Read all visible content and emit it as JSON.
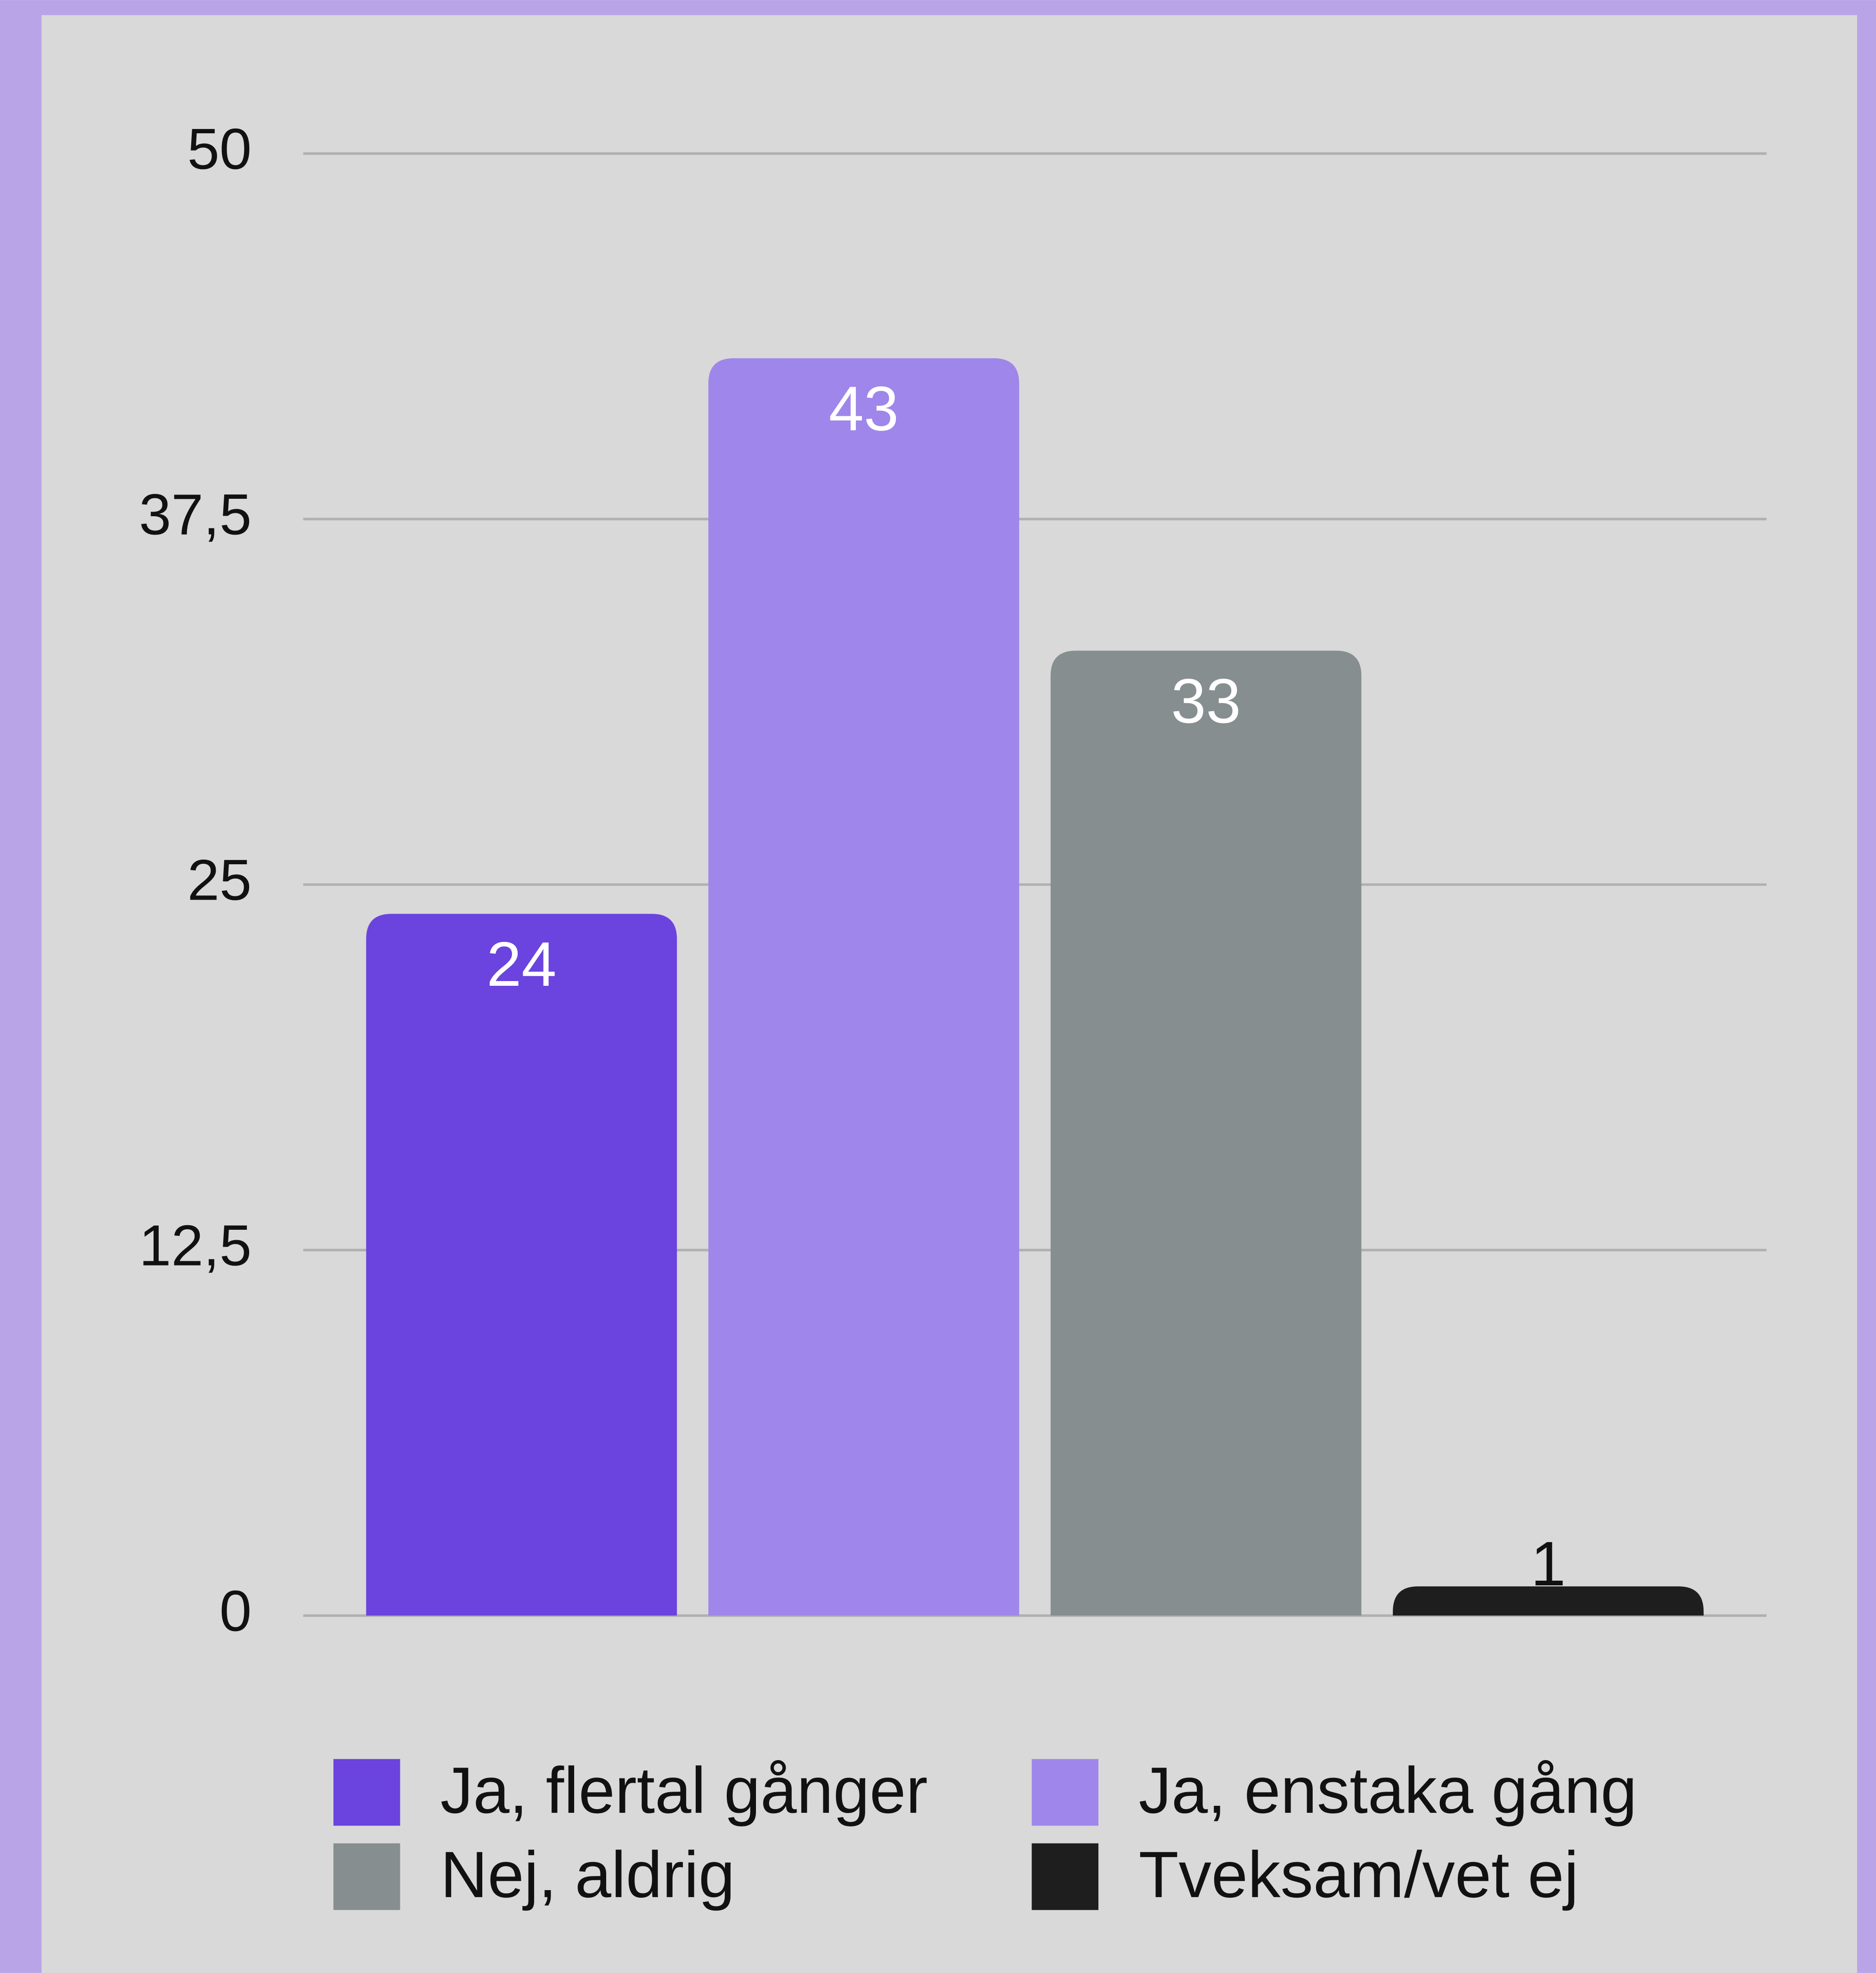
{
  "chart_data": {
    "type": "bar",
    "categories": [
      "Ja, flertal gånger",
      "Ja, enstaka gång",
      "Nej, aldrig",
      "Tveksam/vet ej"
    ],
    "values": [
      24,
      43,
      33,
      1
    ],
    "colors": [
      "#6b43de",
      "#9f86ea",
      "#868e8f",
      "#1e1e1e"
    ],
    "ylim": [
      0,
      50
    ],
    "yticks": [
      0,
      {
        "value": 12.5,
        "label": "12,5"
      },
      25,
      {
        "value": 37.5,
        "label": "37,5"
      },
      50
    ],
    "grid": true
  }
}
